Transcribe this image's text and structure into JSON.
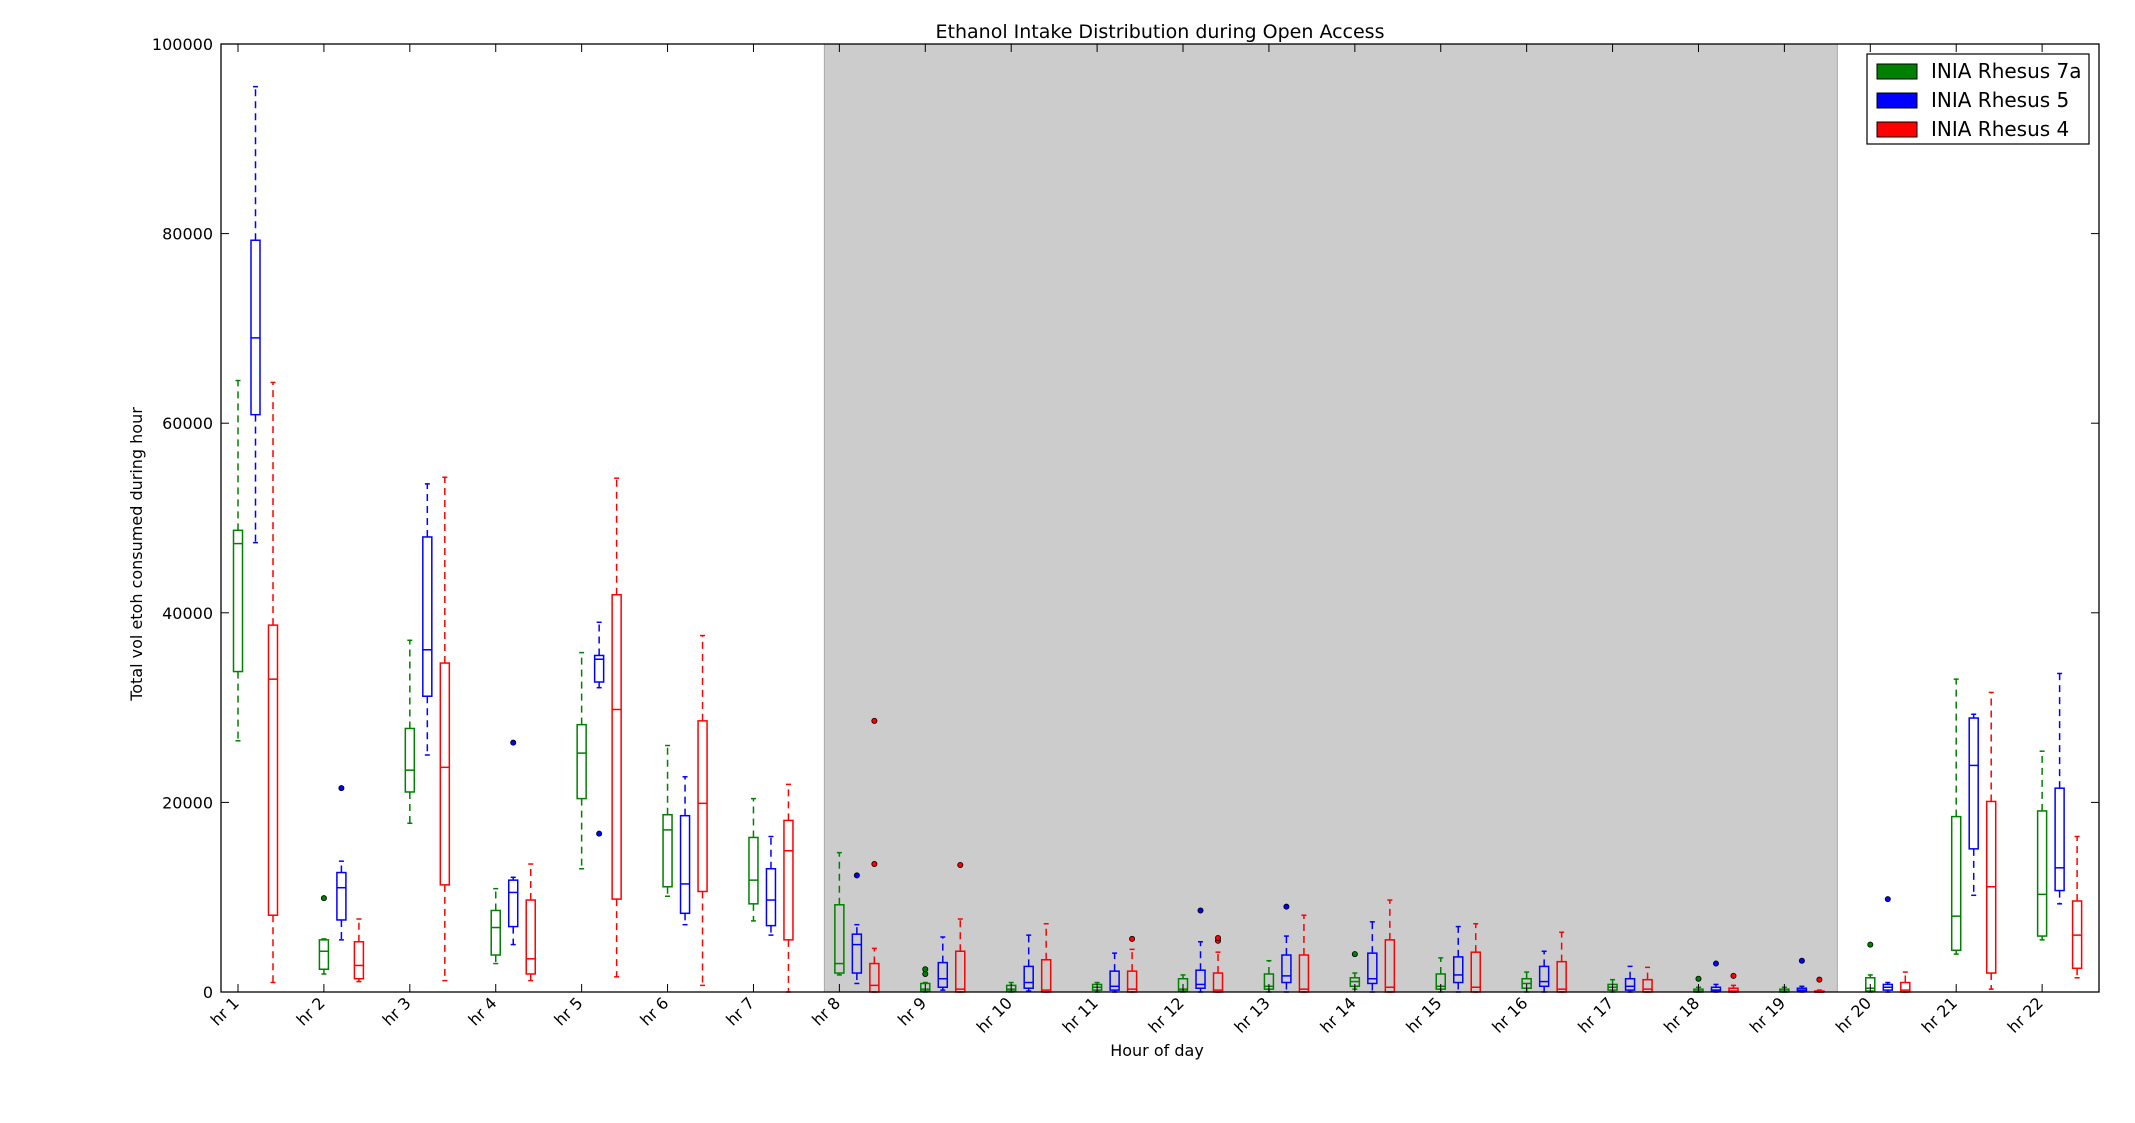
{
  "chart_data": {
    "type": "box",
    "title": "Ethanol Intake Distribution during Open Access",
    "xlabel": "Hour of day",
    "ylabel": "Total vol etoh consumed during hour",
    "ylim": [
      0,
      100000
    ],
    "yticks": [
      "0",
      "20000",
      "40000",
      "60000",
      "80000",
      "100000"
    ],
    "categories": [
      "hr 1",
      "hr 2",
      "hr 3",
      "hr 4",
      "hr 5",
      "hr 6",
      "hr 7",
      "hr 8",
      "hr 9",
      "hr 10",
      "hr 11",
      "hr 12",
      "hr 13",
      "hr 14",
      "hr 15",
      "hr 16",
      "hr 17",
      "hr 18",
      "hr 19",
      "hr 20",
      "hr 21",
      "hr 22"
    ],
    "shaded_region": {
      "from": "hr 8",
      "to": "hr 19",
      "color": "#cccccc"
    },
    "legend": {
      "position": "top-right"
    },
    "series": [
      {
        "name": "INIA Rhesus 7a",
        "color": "#008000",
        "boxes": [
          {
            "whislo": 26500,
            "q1": 33800,
            "med": 47300,
            "q3": 48700,
            "whishi": 64500,
            "fliers": []
          },
          {
            "whislo": 1900,
            "q1": 2400,
            "med": 4300,
            "q3": 5500,
            "whishi": 5600,
            "fliers": [
              9900
            ]
          },
          {
            "whislo": 17800,
            "q1": 21100,
            "med": 23400,
            "q3": 27800,
            "whishi": 37100,
            "fliers": []
          },
          {
            "whislo": 3000,
            "q1": 3900,
            "med": 6800,
            "q3": 8600,
            "whishi": 10900,
            "fliers": []
          },
          {
            "whislo": 13000,
            "q1": 20400,
            "med": 25200,
            "q3": 28200,
            "whishi": 35800,
            "fliers": []
          },
          {
            "whislo": 10100,
            "q1": 11100,
            "med": 17100,
            "q3": 18700,
            "whishi": 26000,
            "fliers": []
          },
          {
            "whislo": 7500,
            "q1": 9300,
            "med": 11800,
            "q3": 16300,
            "whishi": 20400,
            "fliers": []
          },
          {
            "whislo": 1800,
            "q1": 2000,
            "med": 3000,
            "q3": 9200,
            "whishi": 14700,
            "fliers": []
          },
          {
            "whislo": 0,
            "q1": 100,
            "med": 300,
            "q3": 900,
            "whishi": 1000,
            "fliers": [
              1900,
              2400
            ]
          },
          {
            "whislo": 0,
            "q1": 100,
            "med": 300,
            "q3": 700,
            "whishi": 1000,
            "fliers": []
          },
          {
            "whislo": 0,
            "q1": 200,
            "med": 500,
            "q3": 800,
            "whishi": 1000,
            "fliers": []
          },
          {
            "whislo": 0,
            "q1": 100,
            "med": 300,
            "q3": 1400,
            "whishi": 1800,
            "fliers": []
          },
          {
            "whislo": 0,
            "q1": 300,
            "med": 600,
            "q3": 1900,
            "whishi": 3300,
            "fliers": []
          },
          {
            "whislo": 300,
            "q1": 600,
            "med": 1100,
            "q3": 1500,
            "whishi": 2000,
            "fliers": [
              4000
            ]
          },
          {
            "whislo": 0,
            "q1": 300,
            "med": 600,
            "q3": 1900,
            "whishi": 3600,
            "fliers": []
          },
          {
            "whislo": 0,
            "q1": 400,
            "med": 900,
            "q3": 1400,
            "whishi": 2100,
            "fliers": []
          },
          {
            "whislo": 0,
            "q1": 200,
            "med": 500,
            "q3": 800,
            "whishi": 1300,
            "fliers": []
          },
          {
            "whislo": 0,
            "q1": 0,
            "med": 100,
            "q3": 300,
            "whishi": 500,
            "fliers": [
              1400
            ]
          },
          {
            "whislo": 0,
            "q1": 0,
            "med": 100,
            "q3": 300,
            "whishi": 500,
            "fliers": []
          },
          {
            "whislo": 0,
            "q1": 100,
            "med": 400,
            "q3": 1500,
            "whishi": 1800,
            "fliers": [
              5000
            ]
          },
          {
            "whislo": 4000,
            "q1": 4400,
            "med": 8000,
            "q3": 18500,
            "whishi": 33000,
            "fliers": []
          },
          {
            "whislo": 5500,
            "q1": 5900,
            "med": 10300,
            "q3": 19100,
            "whishi": 25400,
            "fliers": []
          }
        ]
      },
      {
        "name": "INIA Rhesus 5",
        "color": "#0000ff",
        "boxes": [
          {
            "whislo": 47400,
            "q1": 60900,
            "med": 69000,
            "q3": 79300,
            "whishi": 95500,
            "fliers": []
          },
          {
            "whislo": 5500,
            "q1": 7600,
            "med": 11000,
            "q3": 12600,
            "whishi": 13800,
            "fliers": [
              21500
            ]
          },
          {
            "whislo": 25000,
            "q1": 31200,
            "med": 36100,
            "q3": 48000,
            "whishi": 53600,
            "fliers": []
          },
          {
            "whislo": 5000,
            "q1": 6900,
            "med": 10500,
            "q3": 11800,
            "whishi": 12100,
            "fliers": [
              26300
            ]
          },
          {
            "whislo": 32100,
            "q1": 32700,
            "med": 35100,
            "q3": 35500,
            "whishi": 39000,
            "fliers": [
              16700
            ]
          },
          {
            "whislo": 7100,
            "q1": 8300,
            "med": 11400,
            "q3": 18600,
            "whishi": 22700,
            "fliers": []
          },
          {
            "whislo": 6000,
            "q1": 7000,
            "med": 9700,
            "q3": 13000,
            "whishi": 16400,
            "fliers": []
          },
          {
            "whislo": 900,
            "q1": 2000,
            "med": 5000,
            "q3": 6100,
            "whishi": 7100,
            "fliers": [
              12300
            ]
          },
          {
            "whislo": 200,
            "q1": 500,
            "med": 1400,
            "q3": 3100,
            "whishi": 5800,
            "fliers": []
          },
          {
            "whislo": 100,
            "q1": 400,
            "med": 1000,
            "q3": 2700,
            "whishi": 6000,
            "fliers": []
          },
          {
            "whislo": 0,
            "q1": 200,
            "med": 600,
            "q3": 2200,
            "whishi": 4100,
            "fliers": []
          },
          {
            "whislo": 0,
            "q1": 400,
            "med": 800,
            "q3": 2300,
            "whishi": 5300,
            "fliers": [
              8600
            ]
          },
          {
            "whislo": 0,
            "q1": 1000,
            "med": 1700,
            "q3": 3900,
            "whishi": 5900,
            "fliers": [
              9000
            ]
          },
          {
            "whislo": 0,
            "q1": 900,
            "med": 1400,
            "q3": 4100,
            "whishi": 7400,
            "fliers": []
          },
          {
            "whislo": 0,
            "q1": 1000,
            "med": 1800,
            "q3": 3700,
            "whishi": 6900,
            "fliers": []
          },
          {
            "whislo": 0,
            "q1": 600,
            "med": 1100,
            "q3": 2700,
            "whishi": 4300,
            "fliers": []
          },
          {
            "whislo": 0,
            "q1": 200,
            "med": 600,
            "q3": 1400,
            "whishi": 2700,
            "fliers": []
          },
          {
            "whislo": 0,
            "q1": 100,
            "med": 200,
            "q3": 500,
            "whishi": 800,
            "fliers": [
              3000
            ]
          },
          {
            "whislo": 0,
            "q1": 100,
            "med": 200,
            "q3": 400,
            "whishi": 600,
            "fliers": [
              3300
            ]
          },
          {
            "whislo": 0,
            "q1": 200,
            "med": 500,
            "q3": 800,
            "whishi": 1000,
            "fliers": [
              9800
            ]
          },
          {
            "whislo": 10200,
            "q1": 15100,
            "med": 23900,
            "q3": 28900,
            "whishi": 29300,
            "fliers": []
          },
          {
            "whislo": 9300,
            "q1": 10700,
            "med": 13100,
            "q3": 21500,
            "whishi": 33600,
            "fliers": []
          }
        ]
      },
      {
        "name": "INIA Rhesus 4",
        "color": "#ff0000",
        "boxes": [
          {
            "whislo": 1000,
            "q1": 8100,
            "med": 33000,
            "q3": 38700,
            "whishi": 64300,
            "fliers": []
          },
          {
            "whislo": 1100,
            "q1": 1400,
            "med": 2800,
            "q3": 5300,
            "whishi": 7700,
            "fliers": []
          },
          {
            "whislo": 1200,
            "q1": 11300,
            "med": 23700,
            "q3": 34700,
            "whishi": 54300,
            "fliers": []
          },
          {
            "whislo": 1200,
            "q1": 1900,
            "med": 3500,
            "q3": 9700,
            "whishi": 13500,
            "fliers": []
          },
          {
            "whislo": 1600,
            "q1": 9800,
            "med": 29800,
            "q3": 41900,
            "whishi": 54200,
            "fliers": []
          },
          {
            "whislo": 700,
            "q1": 10600,
            "med": 19900,
            "q3": 28600,
            "whishi": 37600,
            "fliers": []
          },
          {
            "whislo": 0,
            "q1": 5500,
            "med": 14900,
            "q3": 18100,
            "whishi": 21900,
            "fliers": []
          },
          {
            "whislo": 0,
            "q1": 0,
            "med": 700,
            "q3": 3000,
            "whishi": 4600,
            "fliers": [
              13500,
              28600
            ]
          },
          {
            "whislo": 0,
            "q1": 0,
            "med": 300,
            "q3": 4300,
            "whishi": 7700,
            "fliers": [
              13400
            ]
          },
          {
            "whislo": 0,
            "q1": 0,
            "med": 200,
            "q3": 3400,
            "whishi": 7200,
            "fliers": []
          },
          {
            "whislo": 0,
            "q1": 0,
            "med": 300,
            "q3": 2200,
            "whishi": 4500,
            "fliers": [
              5600
            ]
          },
          {
            "whislo": 0,
            "q1": 0,
            "med": 200,
            "q3": 2000,
            "whishi": 4200,
            "fliers": [
              5400,
              5700
            ]
          },
          {
            "whislo": 0,
            "q1": 0,
            "med": 300,
            "q3": 3900,
            "whishi": 8100,
            "fliers": []
          },
          {
            "whislo": 0,
            "q1": 0,
            "med": 500,
            "q3": 5500,
            "whishi": 9700,
            "fliers": []
          },
          {
            "whislo": 0,
            "q1": 0,
            "med": 500,
            "q3": 4200,
            "whishi": 7200,
            "fliers": []
          },
          {
            "whislo": 0,
            "q1": 0,
            "med": 300,
            "q3": 3200,
            "whishi": 6300,
            "fliers": []
          },
          {
            "whislo": 0,
            "q1": 0,
            "med": 300,
            "q3": 1300,
            "whishi": 2600,
            "fliers": []
          },
          {
            "whislo": 0,
            "q1": 0,
            "med": 100,
            "q3": 400,
            "whishi": 700,
            "fliers": [
              1700
            ]
          },
          {
            "whislo": 0,
            "q1": 0,
            "med": 0,
            "q3": 100,
            "whishi": 200,
            "fliers": [
              1300
            ]
          },
          {
            "whislo": 0,
            "q1": 0,
            "med": 200,
            "q3": 1000,
            "whishi": 2100,
            "fliers": []
          },
          {
            "whislo": 300,
            "q1": 2000,
            "med": 11100,
            "q3": 20100,
            "whishi": 31600,
            "fliers": []
          },
          {
            "whislo": 1500,
            "q1": 2500,
            "med": 6000,
            "q3": 9600,
            "whishi": 16400,
            "fliers": []
          }
        ]
      }
    ]
  }
}
